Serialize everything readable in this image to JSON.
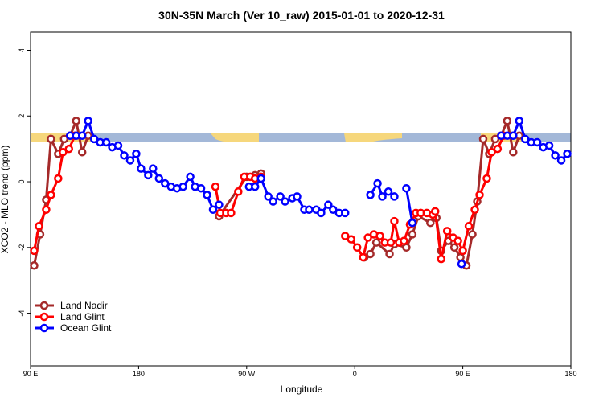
{
  "chart_data": {
    "type": "line",
    "title": "30N-35N March (Ver 10_raw)   2015-01-01 to 2020-12-31",
    "x_label": "Longitude",
    "y_label": "XCO2 - MLO trend (ppm)",
    "xlim": [
      90,
      540
    ],
    "ylim": [
      -5.6,
      4.55
    ],
    "xticks": [
      {
        "value": 90,
        "label": "90 E"
      },
      180,
      {
        "value": 270,
        "label": "90 W"
      },
      {
        "value": 360,
        "label": "0"
      },
      {
        "value": 450,
        "label": "90 E"
      },
      {
        "value": 540,
        "label": "180"
      }
    ],
    "yticks": [
      -4,
      -2,
      0,
      2,
      4
    ],
    "legend": "bottom-left",
    "series": [
      {
        "name": "Land Nadir",
        "color": "#a52a2a",
        "x": [
          93,
          98,
          103,
          107,
          113,
          118,
          123,
          128,
          133,
          138,
          200,
          247,
          270,
          277,
          282,
          320,
          368,
          373,
          378,
          389,
          393,
          403,
          408,
          413,
          423,
          428,
          432,
          438,
          443,
          448,
          453,
          458,
          462,
          467,
          472,
          477,
          482,
          487,
          492,
          497
        ],
        "values": [
          -2.55,
          -1.6,
          -0.55,
          1.3,
          0.85,
          1.3,
          1.4,
          1.85,
          0.9,
          1.4,
          null,
          -1.05,
          0.15,
          0.2,
          0.25,
          null,
          -2.3,
          -2.2,
          -1.85,
          -2.2,
          -1.9,
          -2.0,
          -1.6,
          -1.05,
          -1.25,
          -1.1,
          -2.1,
          -1.8,
          -2.0,
          -2.3,
          -2.55,
          -1.6,
          -0.6,
          1.3,
          0.85,
          1.3,
          1.4,
          1.85,
          0.9,
          1.4
        ]
      },
      {
        "name": "Land Glint",
        "color": "#ff0000",
        "x": [
          93,
          97,
          103,
          107,
          113,
          117,
          122,
          127,
          180,
          244,
          248,
          253,
          257,
          263,
          268,
          273,
          277,
          282,
          320,
          352,
          357,
          362,
          367,
          371,
          376,
          381,
          385,
          390,
          393,
          397,
          401,
          406,
          411,
          415,
          420,
          425,
          427,
          432,
          437,
          442,
          446,
          450,
          455,
          460,
          464,
          470,
          474,
          479,
          484
        ],
        "values": [
          -2.1,
          -1.35,
          -0.85,
          -0.4,
          0.1,
          0.9,
          1.0,
          1.4,
          null,
          -0.15,
          -0.95,
          -0.95,
          -0.95,
          -0.3,
          0.15,
          0.15,
          0.1,
          0.15,
          null,
          -1.65,
          -1.75,
          -2.0,
          -2.3,
          -1.7,
          -1.6,
          -1.65,
          -1.85,
          -1.85,
          -1.2,
          -1.85,
          -1.8,
          -1.3,
          -0.95,
          -0.95,
          -0.95,
          -1.0,
          -0.9,
          -2.35,
          -1.5,
          -1.7,
          -1.8,
          -2.1,
          -1.35,
          -0.85,
          -0.4,
          0.1,
          0.9,
          1.0,
          1.4
        ]
      },
      {
        "name": "Ocean Glint",
        "color": "#0000ff",
        "x": [
          123,
          128,
          133,
          138,
          143,
          148,
          153,
          158,
          163,
          168,
          173,
          178,
          182,
          188,
          192,
          197,
          202,
          207,
          212,
          217,
          223,
          227,
          232,
          237,
          242,
          247,
          260,
          272,
          277,
          282,
          288,
          292,
          298,
          302,
          308,
          312,
          318,
          322,
          328,
          332,
          338,
          342,
          347,
          352,
          370,
          373,
          379,
          383,
          388,
          393,
          397,
          403,
          408,
          430,
          449,
          470,
          482,
          487,
          492,
          497,
          502,
          507,
          512,
          517,
          522,
          527,
          532,
          537
        ],
        "values": [
          1.4,
          1.4,
          1.4,
          1.85,
          1.3,
          1.2,
          1.2,
          1.05,
          1.1,
          0.8,
          0.65,
          0.85,
          0.4,
          0.2,
          0.4,
          0.1,
          -0.05,
          -0.15,
          -0.2,
          -0.15,
          0.15,
          -0.15,
          -0.2,
          -0.4,
          -0.85,
          -0.7,
          null,
          -0.15,
          -0.15,
          0.1,
          -0.45,
          -0.6,
          -0.45,
          -0.6,
          -0.5,
          -0.45,
          -0.85,
          -0.85,
          -0.85,
          -0.95,
          -0.7,
          -0.85,
          -0.95,
          -0.95,
          null,
          -0.4,
          -0.05,
          -0.45,
          -0.3,
          -0.45,
          null,
          -0.2,
          -1.25,
          null,
          -2.5,
          null,
          1.4,
          1.4,
          1.4,
          1.85,
          1.3,
          1.2,
          1.2,
          1.05,
          1.1,
          0.8,
          0.65,
          0.85
        ]
      }
    ]
  }
}
